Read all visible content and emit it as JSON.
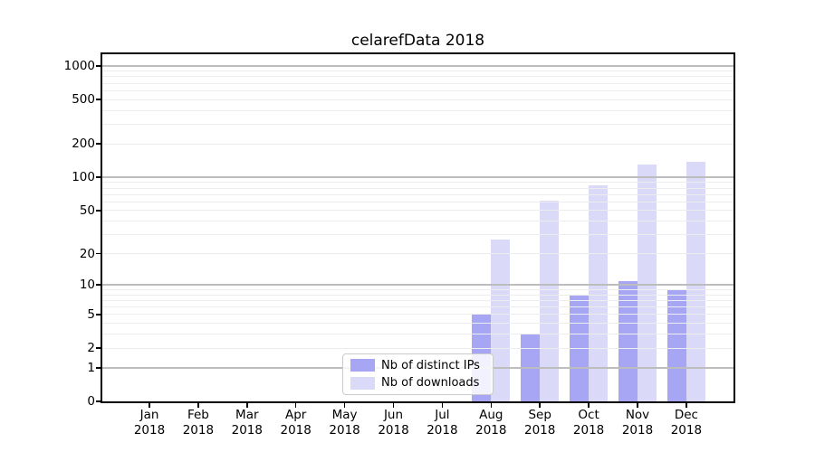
{
  "chart_data": {
    "type": "bar",
    "title": "celarefData 2018",
    "x_year": "2018",
    "categories": [
      "Jan",
      "Feb",
      "Mar",
      "Apr",
      "May",
      "Jun",
      "Jul",
      "Aug",
      "Sep",
      "Oct",
      "Nov",
      "Dec"
    ],
    "series": [
      {
        "name": "Nb of distinct IPs",
        "color": "#a6a6f4",
        "values": [
          0,
          0,
          0,
          0,
          0,
          0,
          0,
          5,
          3,
          8,
          11,
          9
        ]
      },
      {
        "name": "Nb of downloads",
        "color": "#dadaf8",
        "values": [
          0,
          0,
          0,
          0,
          0,
          0,
          0,
          27,
          61,
          85,
          131,
          139
        ]
      }
    ],
    "y_axis": {
      "scale": "log1p",
      "ticks": [
        0,
        1,
        2,
        5,
        10,
        20,
        50,
        100,
        200,
        500,
        1000
      ],
      "major_grid": [
        1,
        10,
        100,
        1000
      ],
      "minor_grid": [
        2,
        3,
        4,
        5,
        6,
        7,
        8,
        9,
        20,
        30,
        40,
        50,
        60,
        70,
        80,
        90,
        200,
        300,
        400,
        500,
        600,
        700,
        800,
        900
      ],
      "top_value": 1226
    },
    "legend": {
      "position": "bottom-center"
    },
    "colors": {
      "bar_dark": "#a6a6f4",
      "bar_light": "#dadaf8",
      "major_grid": "#bdbdbd",
      "minor_grid": "#ededed",
      "spine": "#000000",
      "text": "#000000"
    },
    "grid": true
  }
}
